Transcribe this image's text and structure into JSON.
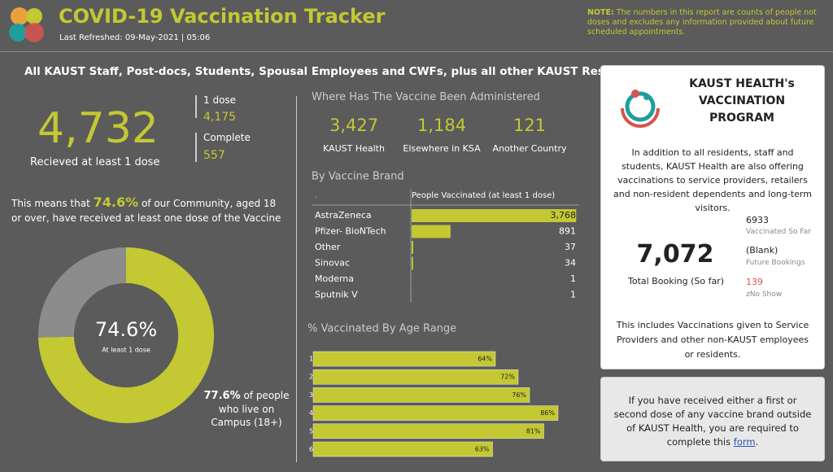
{
  "header": {
    "title": "COVID-19 Vaccination Tracker",
    "refreshed": "Last Refreshed:  09-May-2021 | 05:06",
    "note_label": "NOTE:",
    "note": "The numbers in this report are counts of people not doses and excludes any information provided about future scheduled appointments."
  },
  "banner": "All KAUST Staff, Post-docs, Students, Spousal Employees and CWFs, plus all other KAUST Residents",
  "summary": {
    "total": "4,732",
    "total_label": "Recieved at least 1 dose",
    "dose1_label": "1 dose",
    "dose1": "4,175",
    "complete_label": "Complete",
    "complete": "557"
  },
  "community": {
    "before": "This means that ",
    "pct": "74.6%",
    "after": " of our Community, aged 18 or over, have received at least one dose of the Vaccine"
  },
  "where": {
    "title": "Where Has The Vaccine Been Administered",
    "items": [
      {
        "value": "3,427",
        "label": "KAUST Health"
      },
      {
        "value": "1,184",
        "label": "Elsewhere in KSA"
      },
      {
        "value": "121",
        "label": "Another Country"
      }
    ]
  },
  "chart_data": [
    {
      "type": "donut",
      "values": [
        74.6,
        25.4
      ],
      "colors": [
        "#c3c833",
        "#8c8c8c"
      ],
      "center_label": "74.6%",
      "center_sublabel": "At least 1 dose",
      "annotation_value": "77.6%",
      "annotation": "of people who live on Campus (18+)"
    },
    {
      "type": "table-bar",
      "title": "By Vaccine Brand",
      "column_left": ".",
      "column_right": "People Vaccinated (at least 1 dose)",
      "categories": [
        "AstraZeneca",
        "Pfizer- BioNTech",
        "Other",
        "Sinovac",
        "Moderna",
        "Sputnik V"
      ],
      "values": [
        3768,
        891,
        37,
        34,
        1,
        1
      ],
      "value_labels": [
        "3,768",
        "891",
        "37",
        "34",
        "1",
        "1"
      ],
      "xlim": [
        0,
        3800
      ],
      "color": "#c3c833"
    },
    {
      "type": "hbar",
      "title": "% Vaccinated By Age Range",
      "categories": [
        "18-25",
        "26-35",
        "36-45",
        "46-55",
        "56-65",
        "66+"
      ],
      "values": [
        64,
        72,
        76,
        86,
        81,
        63
      ],
      "value_labels": [
        "64%",
        "72%",
        "76%",
        "86%",
        "81%",
        "63%"
      ],
      "xlim": [
        0,
        100
      ],
      "color": "#c3c833"
    }
  ],
  "program": {
    "title": "KAUST HEALTH's VACCINATION PROGRAM",
    "text": "In addition to all residents, staff and students, KAUST Health are also offering vaccinations to service providers, retailers and non-resident dependents and long-term visitors.",
    "total": "7,072",
    "total_label": "Total Booking (So far)",
    "vaccinated": "6933",
    "vaccinated_label": "Vaccinated So Far",
    "future": "(Blank)",
    "future_label": "Future Bookings",
    "no_show": "139",
    "no_show_label": "zNo Show",
    "footer": "This includes Vaccinations given to Service Providers and other non-KAUST employees or residents."
  },
  "form_card": {
    "text": "If you have received either a first or second dose of any vaccine brand outside of KAUST Health, you are required to complete this ",
    "link": "form",
    "end": "."
  }
}
